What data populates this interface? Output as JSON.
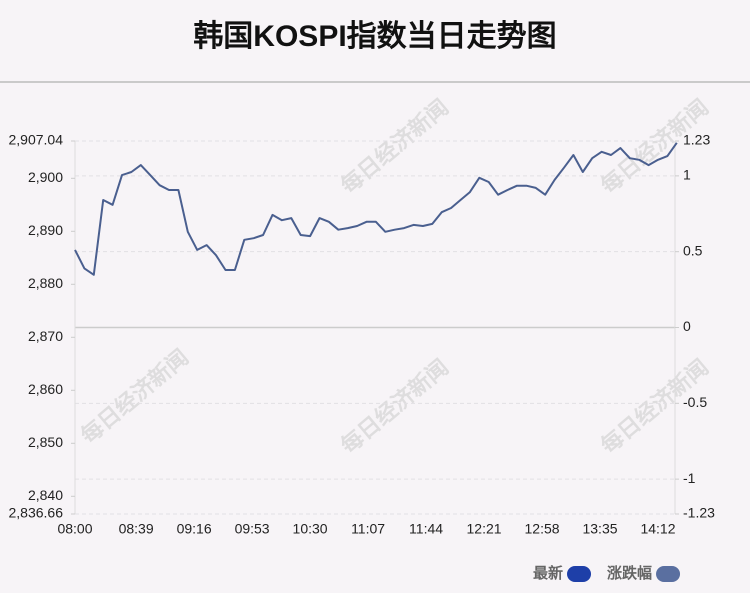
{
  "chart_data": {
    "type": "line",
    "title": "韩国KOSPI指数当日走势图",
    "watermark": "每日经济新闻",
    "x": [
      "08:00",
      "08:06",
      "08:12",
      "08:18",
      "08:24",
      "08:30",
      "08:36",
      "08:42",
      "08:48",
      "08:54",
      "09:00",
      "09:06",
      "09:12",
      "09:18",
      "09:24",
      "09:30",
      "09:36",
      "09:42",
      "09:48",
      "09:54",
      "10:00",
      "10:06",
      "10:12",
      "10:18",
      "10:24",
      "10:30",
      "10:36",
      "10:42",
      "10:48",
      "10:54",
      "11:00",
      "11:06",
      "11:12",
      "11:18",
      "11:24",
      "11:30",
      "11:36",
      "11:42",
      "11:48",
      "11:54",
      "12:00",
      "12:06",
      "12:12",
      "12:18",
      "12:24",
      "12:30",
      "12:36",
      "12:42",
      "12:48",
      "12:54",
      "13:00",
      "13:06",
      "13:12",
      "13:18",
      "13:24",
      "13:30",
      "13:36",
      "13:42",
      "13:48",
      "13:54",
      "14:00",
      "14:06",
      "14:12",
      "14:18",
      "14:24"
    ],
    "series": [
      {
        "name": "最新",
        "color": "#4a5f8f",
        "values": [
          2886.5,
          2883,
          2881.8,
          2895.9,
          2895,
          2900.6,
          2901.2,
          2902.5,
          2900.6,
          2898.7,
          2897.8,
          2897.8,
          2889.9,
          2886.5,
          2887.4,
          2885.5,
          2882.7,
          2882.7,
          2888.4,
          2888.7,
          2889.3,
          2893.1,
          2892.1,
          2892.5,
          2889.3,
          2889.1,
          2892.5,
          2891.8,
          2890.3,
          2890.6,
          2891,
          2891.8,
          2891.8,
          2889.9,
          2890.3,
          2890.6,
          2891.2,
          2891,
          2891.4,
          2893.6,
          2894.4,
          2895.9,
          2897.4,
          2900.1,
          2899.3,
          2896.9,
          2897.8,
          2898.6,
          2898.6,
          2898.2,
          2896.9,
          2899.7,
          2902,
          2904.4,
          2901.2,
          2903.8,
          2905,
          2904.4,
          2905.7,
          2903.8,
          2903.5,
          2902.5,
          2903.5,
          2904.2,
          2906.7
        ]
      }
    ],
    "legend": [
      {
        "name": "最新",
        "color": "#1e3fa8"
      },
      {
        "name": "涨跌幅",
        "color": "#5a6fa0"
      }
    ],
    "xticks": [
      "08:00",
      "08:39",
      "09:16",
      "09:53",
      "10:30",
      "11:07",
      "11:44",
      "12:21",
      "12:58",
      "13:35",
      "14:12"
    ],
    "ylim": [
      2836.66,
      2907.04
    ],
    "yticks": [
      {
        "value": 2907.04,
        "label": "2,907.04"
      },
      {
        "value": 2900,
        "label": "2,900"
      },
      {
        "value": 2890,
        "label": "2,890"
      },
      {
        "value": 2880,
        "label": "2,880"
      },
      {
        "value": 2870,
        "label": "2,870"
      },
      {
        "value": 2860,
        "label": "2,860"
      },
      {
        "value": 2850,
        "label": "2,850"
      },
      {
        "value": 2840,
        "label": "2,840"
      },
      {
        "value": 2836.66,
        "label": "2,836.66"
      }
    ],
    "y2lim": [
      -1.23,
      1.23
    ],
    "y2ticks": [
      1.23,
      1,
      0.5,
      0,
      -0.5,
      -1,
      -1.23
    ],
    "grid": true
  }
}
